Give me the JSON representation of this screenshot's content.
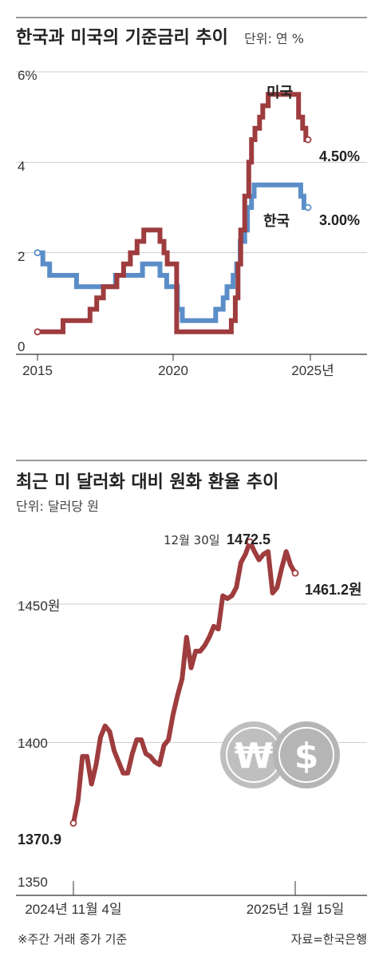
{
  "chart_data": [
    {
      "type": "line",
      "title": "한국과 미국의 기준금리 추이",
      "unit_label": "단위: 연 %",
      "y_ticks": [
        "6%",
        "4",
        "2",
        "0"
      ],
      "x_ticks": [
        "2015",
        "2020",
        "2025년"
      ],
      "ylim": [
        0,
        6
      ],
      "xlim": [
        2015,
        2026.2
      ],
      "grid": true,
      "colors": {
        "한국": "#5b8ec8",
        "미국": "#9e3c3e"
      },
      "series": [
        {
          "name": "미국",
          "end_label": "4.50%",
          "points": [
            [
              2015.0,
              0.25
            ],
            [
              2015.95,
              0.25
            ],
            [
              2015.95,
              0.5
            ],
            [
              2016.95,
              0.5
            ],
            [
              2016.95,
              0.75
            ],
            [
              2017.2,
              0.75
            ],
            [
              2017.2,
              1.0
            ],
            [
              2017.45,
              1.0
            ],
            [
              2017.45,
              1.25
            ],
            [
              2017.95,
              1.25
            ],
            [
              2017.95,
              1.5
            ],
            [
              2018.2,
              1.5
            ],
            [
              2018.2,
              1.75
            ],
            [
              2018.45,
              1.75
            ],
            [
              2018.45,
              2.0
            ],
            [
              2018.7,
              2.0
            ],
            [
              2018.7,
              2.25
            ],
            [
              2018.95,
              2.25
            ],
            [
              2018.95,
              2.5
            ],
            [
              2019.55,
              2.5
            ],
            [
              2019.55,
              2.25
            ],
            [
              2019.7,
              2.25
            ],
            [
              2019.7,
              2.0
            ],
            [
              2019.82,
              2.0
            ],
            [
              2019.82,
              1.75
            ],
            [
              2020.17,
              1.75
            ],
            [
              2020.17,
              0.25
            ],
            [
              2022.2,
              0.25
            ],
            [
              2022.2,
              0.5
            ],
            [
              2022.35,
              0.5
            ],
            [
              2022.35,
              1.0
            ],
            [
              2022.45,
              1.0
            ],
            [
              2022.45,
              1.75
            ],
            [
              2022.55,
              1.75
            ],
            [
              2022.55,
              2.5
            ],
            [
              2022.7,
              2.5
            ],
            [
              2022.7,
              3.25
            ],
            [
              2022.85,
              3.25
            ],
            [
              2022.85,
              4.0
            ],
            [
              2022.95,
              4.0
            ],
            [
              2022.95,
              4.5
            ],
            [
              2023.08,
              4.5
            ],
            [
              2023.08,
              4.75
            ],
            [
              2023.25,
              4.75
            ],
            [
              2023.25,
              5.0
            ],
            [
              2023.37,
              5.0
            ],
            [
              2023.37,
              5.25
            ],
            [
              2023.57,
              5.25
            ],
            [
              2023.57,
              5.5
            ],
            [
              2024.7,
              5.5
            ],
            [
              2024.7,
              5.0
            ],
            [
              2024.85,
              5.0
            ],
            [
              2024.85,
              4.75
            ],
            [
              2024.97,
              4.75
            ],
            [
              2024.97,
              4.5
            ],
            [
              2025.05,
              4.5
            ]
          ]
        },
        {
          "name": "한국",
          "end_label": "3.00%",
          "points": [
            [
              2015.0,
              2.0
            ],
            [
              2015.2,
              2.0
            ],
            [
              2015.2,
              1.75
            ],
            [
              2015.45,
              1.75
            ],
            [
              2015.45,
              1.5
            ],
            [
              2016.45,
              1.5
            ],
            [
              2016.45,
              1.25
            ],
            [
              2017.9,
              1.25
            ],
            [
              2017.9,
              1.5
            ],
            [
              2018.9,
              1.5
            ],
            [
              2018.9,
              1.75
            ],
            [
              2019.55,
              1.75
            ],
            [
              2019.55,
              1.5
            ],
            [
              2019.8,
              1.5
            ],
            [
              2019.8,
              1.25
            ],
            [
              2020.2,
              1.25
            ],
            [
              2020.2,
              0.75
            ],
            [
              2020.38,
              0.75
            ],
            [
              2020.38,
              0.5
            ],
            [
              2021.62,
              0.5
            ],
            [
              2021.62,
              0.75
            ],
            [
              2021.9,
              0.75
            ],
            [
              2021.9,
              1.0
            ],
            [
              2022.04,
              1.0
            ],
            [
              2022.04,
              1.25
            ],
            [
              2022.27,
              1.25
            ],
            [
              2022.27,
              1.5
            ],
            [
              2022.4,
              1.5
            ],
            [
              2022.4,
              1.75
            ],
            [
              2022.53,
              1.75
            ],
            [
              2022.53,
              2.25
            ],
            [
              2022.7,
              2.25
            ],
            [
              2022.7,
              2.5
            ],
            [
              2022.8,
              2.5
            ],
            [
              2022.8,
              3.0
            ],
            [
              2022.95,
              3.0
            ],
            [
              2022.95,
              3.25
            ],
            [
              2023.05,
              3.25
            ],
            [
              2023.05,
              3.5
            ],
            [
              2024.78,
              3.5
            ],
            [
              2024.78,
              3.25
            ],
            [
              2024.9,
              3.25
            ],
            [
              2024.9,
              3.0
            ],
            [
              2025.05,
              3.0
            ]
          ]
        }
      ]
    },
    {
      "type": "line",
      "title": "최근 미 달러화 대비 원화 환율 추이",
      "unit_label": "단위: 달러당 원",
      "y_ticks": [
        "1450원",
        "1400",
        "1350"
      ],
      "x_ticks": [
        "2024년 11월 4일",
        "2025년 1월 15일"
      ],
      "ylim": [
        1350,
        1480
      ],
      "xlim": [
        0,
        72
      ],
      "grid": true,
      "color": "#9e3c3e",
      "peak_label": {
        "prefix": "12월 30일",
        "value": "1472.5"
      },
      "start_label": "1370.9",
      "end_label": "1461.2원",
      "series": [
        {
          "points": [
            [
              0,
              1370.9
            ],
            [
              1,
              1379
            ],
            [
              2,
              1395
            ],
            [
              3,
              1395
            ],
            [
              4,
              1385
            ],
            [
              5,
              1392
            ],
            [
              6,
              1402
            ],
            [
              7,
              1406
            ],
            [
              8,
              1404
            ],
            [
              9,
              1397
            ],
            [
              10,
              1393
            ],
            [
              11,
              1389
            ],
            [
              12,
              1389
            ],
            [
              13,
              1396
            ],
            [
              14,
              1401
            ],
            [
              15,
              1401
            ],
            [
              16,
              1396
            ],
            [
              17,
              1395
            ],
            [
              18,
              1393
            ],
            [
              19,
              1392
            ],
            [
              20,
              1399
            ],
            [
              21,
              1401
            ],
            [
              22,
              1410
            ],
            [
              23,
              1417
            ],
            [
              24,
              1423
            ],
            [
              25,
              1438
            ],
            [
              26,
              1427
            ],
            [
              27,
              1433
            ],
            [
              28,
              1433
            ],
            [
              29,
              1435
            ],
            [
              30,
              1438
            ],
            [
              31,
              1442
            ],
            [
              32,
              1441
            ],
            [
              33,
              1453
            ],
            [
              34,
              1452
            ],
            [
              35,
              1453
            ],
            [
              36,
              1456
            ],
            [
              37,
              1465
            ],
            [
              38,
              1468
            ],
            [
              39,
              1472.5
            ],
            [
              40,
              1469
            ],
            [
              41,
              1466
            ],
            [
              42,
              1468
            ],
            [
              43,
              1469
            ],
            [
              44,
              1454
            ],
            [
              45,
              1456
            ],
            [
              46,
              1463
            ],
            [
              47,
              1469
            ],
            [
              48,
              1464
            ],
            [
              49,
              1461.2
            ]
          ]
        }
      ]
    }
  ],
  "coins": {
    "won": "₩",
    "dollar": "$"
  },
  "footnote": "※주간 거래 종가 기준",
  "source": "자료=한국은행"
}
